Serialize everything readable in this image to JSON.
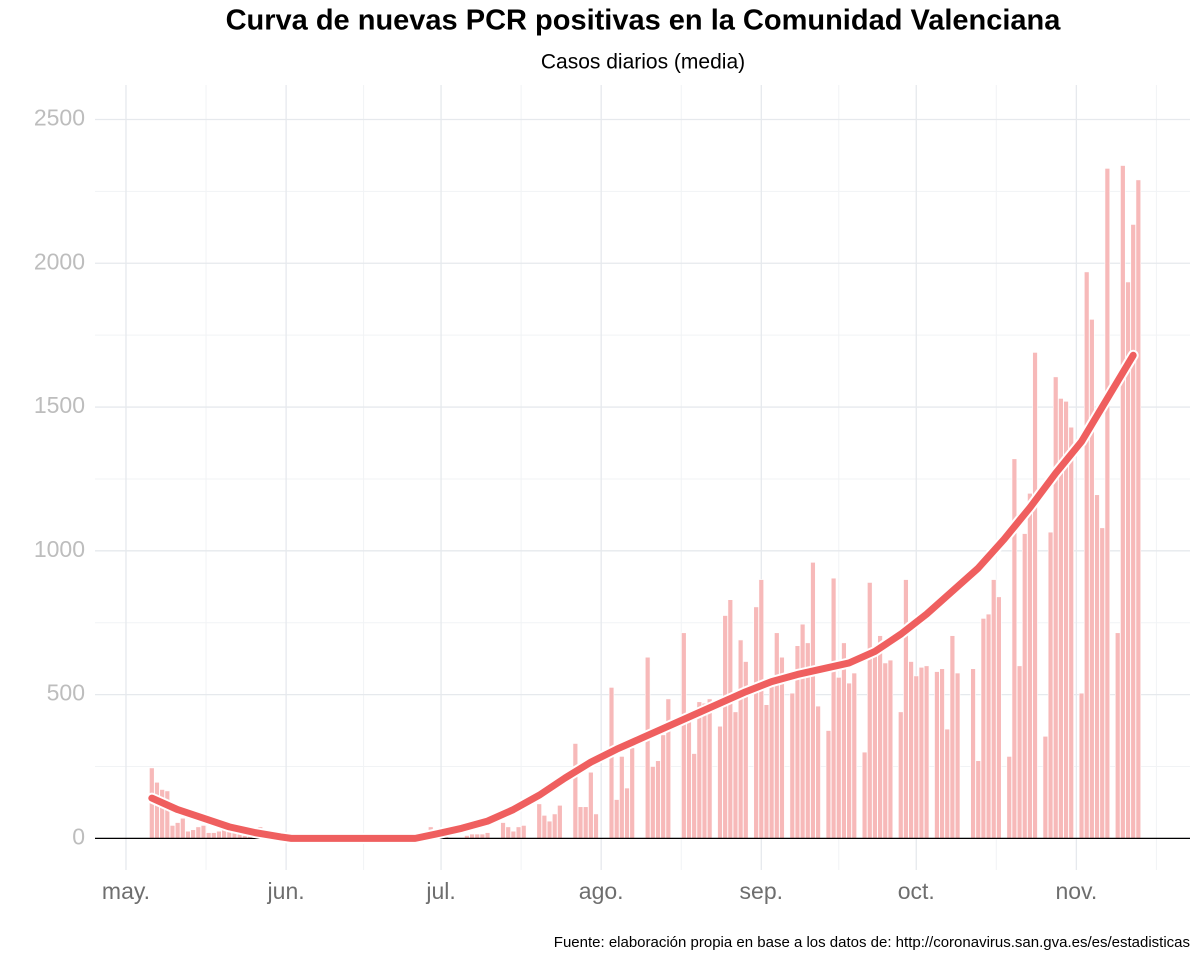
{
  "chart_data": {
    "type": "bar",
    "title": "Curva de nuevas PCR positivas en la Comunidad Valenciana",
    "subtitle": "Casos diarios (media)",
    "source": "Fuente: elaboración propia en base a los datos de: http://coronavirus.san.gva.es/es/estadisticas",
    "color": "#f7b9b9",
    "x": [
      5,
      6,
      7,
      8,
      9,
      10,
      11,
      12,
      13,
      14,
      15,
      16,
      17,
      18,
      19,
      20,
      21,
      22,
      23,
      24,
      25,
      26,
      27,
      28,
      29,
      30,
      33,
      36,
      40,
      45,
      50,
      55,
      59,
      60,
      62,
      66,
      67,
      68,
      69,
      70,
      73,
      74,
      75,
      76,
      77,
      80,
      81,
      82,
      83,
      84,
      87,
      88,
      89,
      90,
      91,
      94,
      95,
      96,
      97,
      98,
      101,
      102,
      103,
      104,
      105,
      108,
      109,
      110,
      111,
      112,
      113,
      115,
      116,
      117,
      118,
      119,
      120,
      122,
      123,
      124,
      125,
      126,
      127,
      129,
      130,
      131,
      132,
      133,
      134,
      136,
      137,
      138,
      139,
      140,
      141,
      143,
      144,
      145,
      146,
      147,
      148,
      150,
      151,
      152,
      153,
      154,
      155,
      157,
      158,
      159,
      160,
      161,
      164,
      165,
      166,
      167,
      168,
      169,
      171,
      172,
      173,
      174,
      175,
      176,
      178,
      179,
      180,
      181,
      182,
      183,
      185,
      186,
      187,
      188,
      189,
      190,
      192,
      193,
      194,
      195,
      196
    ],
    "values": [
      245,
      195,
      170,
      165,
      45,
      55,
      70,
      25,
      30,
      40,
      45,
      20,
      20,
      25,
      30,
      25,
      20,
      15,
      10,
      8,
      5,
      40,
      10,
      5,
      5,
      3,
      3,
      2,
      3,
      2,
      3,
      3,
      40,
      25,
      10,
      10,
      15,
      15,
      15,
      20,
      55,
      40,
      25,
      40,
      45,
      120,
      80,
      60,
      85,
      115,
      330,
      110,
      110,
      230,
      85,
      525,
      135,
      285,
      175,
      315,
      630,
      250,
      270,
      360,
      485,
      715,
      415,
      295,
      475,
      470,
      485,
      390,
      775,
      830,
      440,
      690,
      615,
      805,
      900,
      465,
      560,
      715,
      630,
      505,
      670,
      745,
      680,
      960,
      460,
      375,
      905,
      560,
      680,
      540,
      575,
      300,
      890,
      640,
      705,
      610,
      620,
      440,
      900,
      615,
      565,
      595,
      600,
      580,
      590,
      380,
      705,
      575,
      590,
      270,
      765,
      780,
      900,
      840,
      285,
      1320,
      600,
      1060,
      1200,
      1690,
      355,
      1065,
      1605,
      1530,
      1520,
      1430,
      505,
      1970,
      1805,
      1195,
      1080,
      2330,
      715,
      2340,
      1935,
      2135,
      2290
    ],
    "overlay": {
      "type": "line",
      "color": "#ef5f5f",
      "x": [
        5,
        10,
        15,
        20,
        25,
        30,
        32,
        40,
        50,
        56,
        60,
        65,
        70,
        75,
        80,
        85,
        90,
        95,
        100,
        105,
        110,
        115,
        120,
        125,
        130,
        135,
        140,
        145,
        150,
        155,
        160,
        165,
        170,
        175,
        180,
        185,
        190,
        195
      ],
      "values": [
        140,
        100,
        70,
        40,
        20,
        5,
        0,
        0,
        0,
        0,
        15,
        35,
        60,
        100,
        150,
        210,
        265,
        310,
        350,
        390,
        430,
        470,
        510,
        545,
        570,
        590,
        610,
        650,
        710,
        780,
        860,
        940,
        1040,
        1150,
        1270,
        1380,
        1530,
        1680
      ]
    },
    "xlim": [
      -6,
      206
    ],
    "xticks": [
      {
        "value": 0,
        "label": "may."
      },
      {
        "value": 31,
        "label": "jun."
      },
      {
        "value": 61,
        "label": "jul."
      },
      {
        "value": 92,
        "label": "ago."
      },
      {
        "value": 123,
        "label": "sep."
      },
      {
        "value": 153,
        "label": "oct."
      },
      {
        "value": 184,
        "label": "nov."
      }
    ],
    "ylim": [
      -110,
      2620
    ],
    "yticks": [
      0,
      500,
      1000,
      1500,
      2000,
      2500
    ],
    "grid": true
  }
}
